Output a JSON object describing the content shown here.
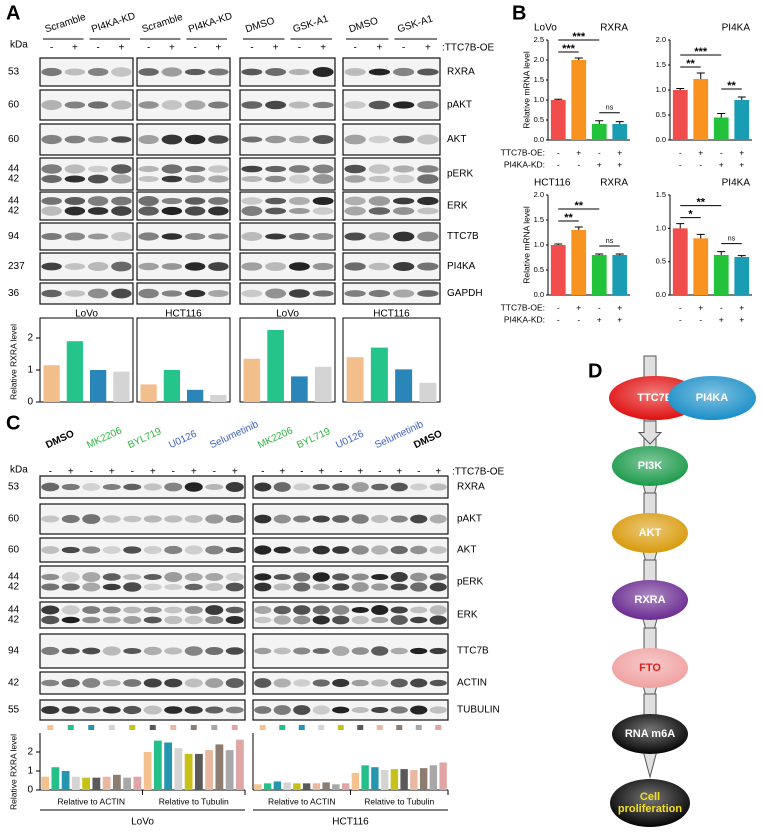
{
  "panel_a": {
    "label": "A",
    "kda": "kDa",
    "oe_label": ":TTC7B-OE",
    "groups": [
      "Scramble",
      "PI4KA-KD",
      "Scramble",
      "PI4KA-KD",
      "DMSO",
      "GSK-A1",
      "DMSO",
      "GSK-A1"
    ],
    "signs": [
      "-",
      "+"
    ],
    "proteins": [
      "RXRA",
      "pAKT",
      "AKT",
      "pERK",
      "ERK",
      "TTC7B",
      "PI4KA",
      "GAPDH"
    ],
    "markers": [
      [
        "53"
      ],
      [
        "60"
      ],
      [
        "60"
      ],
      [
        "44",
        "42"
      ],
      [
        "44",
        "42"
      ],
      [
        "94"
      ],
      [
        "237"
      ],
      [
        "36"
      ]
    ],
    "cell_lines": [
      "LoVo",
      "HCT116",
      "LoVo",
      "HCT116"
    ],
    "chart": {
      "type": "bar",
      "y_label": "Relative RXRA level",
      "ylim": [
        0,
        2.5
      ],
      "yticks": [
        0,
        1,
        2
      ],
      "colors": [
        "#f2bf8c",
        "#25c48a",
        "#2a86b8",
        "#d4d4d4"
      ],
      "groups": [
        [
          1.15,
          1.9,
          1.0,
          0.95
        ],
        [
          0.55,
          1.0,
          0.38,
          0.22
        ],
        [
          1.35,
          2.25,
          0.8,
          1.1
        ],
        [
          1.4,
          1.7,
          1.02,
          0.6
        ]
      ]
    }
  },
  "panel_b": {
    "label": "B",
    "y_label": "Relative mRNA level",
    "row_labels": [
      "TTC7B-OE:",
      "PI4KA-KD:"
    ],
    "row_signs": [
      [
        "-",
        "+",
        "-",
        "+"
      ],
      [
        "-",
        "-",
        "+",
        "+"
      ]
    ],
    "colors": [
      "#f24d4d",
      "#f7931e",
      "#22c23a",
      "#1a9db2"
    ],
    "charts": [
      {
        "type": "bar",
        "cell_line": "LoVo",
        "gene": "RXRA",
        "values": [
          1.0,
          2.0,
          0.4,
          0.4
        ],
        "errors": [
          0.02,
          0.05,
          0.08,
          0.06
        ],
        "ylim": [
          0,
          2.5
        ],
        "yticks": [
          {
            "value": 0,
            "label": "0.0"
          },
          0.5,
          {
            "value": 1,
            "label": "1.0"
          },
          1.5,
          {
            "value": 2,
            "label": "2.0"
          },
          2.5
        ],
        "sig": [
          "***",
          "***",
          "ns"
        ]
      },
      {
        "type": "bar",
        "gene": "PI4KA",
        "values": [
          1.0,
          1.22,
          0.45,
          0.8
        ],
        "errors": [
          0.03,
          0.12,
          0.08,
          0.06
        ],
        "ylim": [
          0,
          2.0
        ],
        "yticks": [
          {
            "value": 0,
            "label": "0.0"
          },
          0.5,
          {
            "value": 1,
            "label": "1.0"
          },
          1.5,
          {
            "value": 2,
            "label": "2.0"
          }
        ],
        "sig": [
          "**",
          "***",
          "**"
        ]
      },
      {
        "type": "bar",
        "cell_line": "HCT116",
        "gene": "RXRA",
        "values": [
          1.0,
          1.3,
          0.8,
          0.8
        ],
        "errors": [
          0.02,
          0.06,
          0.02,
          0.02
        ],
        "ylim": [
          0,
          2.0
        ],
        "yticks": [
          {
            "value": 0,
            "label": "0.0"
          },
          0.5,
          {
            "value": 1,
            "label": "1.0"
          },
          1.5,
          {
            "value": 2,
            "label": "2.0"
          }
        ],
        "sig": [
          "**",
          "**",
          "ns"
        ]
      },
      {
        "type": "bar",
        "gene": "PI4KA",
        "values": [
          1.0,
          0.85,
          0.6,
          0.57
        ],
        "errors": [
          0.07,
          0.06,
          0.05,
          0.02
        ],
        "ylim": [
          0,
          1.5
        ],
        "yticks": [
          {
            "value": 0,
            "label": "0.0"
          },
          0.5,
          {
            "value": 1,
            "label": "1.0"
          },
          1.5
        ],
        "sig": [
          "*",
          "**",
          "ns"
        ]
      }
    ]
  },
  "panel_c": {
    "label": "C",
    "kda": "kDa",
    "oe_label": ":TTC7B-OE",
    "signs": [
      "-",
      "+"
    ],
    "treatments": [
      {
        "name": "DMSO",
        "color": "#000000"
      },
      {
        "name": "MK2206",
        "color": "#2bb33a"
      },
      {
        "name": "BYL719",
        "color": "#2bb33a"
      },
      {
        "name": "U0126",
        "color": "#3a5fc4"
      },
      {
        "name": "Selumetinib",
        "color": "#3a5fc4"
      },
      {
        "name": "MK2206",
        "color": "#2bb33a"
      },
      {
        "name": "BYL719",
        "color": "#2bb33a"
      },
      {
        "name": "U0126",
        "color": "#3a5fc4"
      },
      {
        "name": "Selumetinib",
        "color": "#3a5fc4"
      },
      {
        "name": "DMSO",
        "color": "#000000"
      }
    ],
    "proteins": [
      "RXRA",
      "pAKT",
      "AKT",
      "pERK",
      "ERK",
      "TTC7B",
      "ACTIN",
      "TUBULIN"
    ],
    "markers": [
      [
        "53"
      ],
      [
        "60"
      ],
      [
        "60"
      ],
      [
        "44",
        "42"
      ],
      [
        "44",
        "42"
      ],
      [
        "94"
      ],
      [
        "42"
      ],
      [
        "55"
      ]
    ],
    "chart": {
      "type": "bar",
      "y_label": "Relative RXRA level",
      "ylim": [
        0,
        3
      ],
      "yticks": [
        0,
        1,
        2
      ],
      "colors": [
        "#f5c18e",
        "#25c08a",
        "#2596b0",
        "#d4d4d4",
        "#c7c21a",
        "#5a5a5a",
        "#e8b8a0",
        "#8c7d70",
        "#a8a8a8",
        "#e0a6a6"
      ],
      "panels": [
        {
          "cell_line": "LoVo",
          "groups": [
            {
              "name": "Relative to ACTIN",
              "values": [
                0.7,
                1.2,
                1.0,
                0.7,
                0.65,
                0.65,
                0.7,
                0.8,
                0.65,
                0.7
              ]
            },
            {
              "name": "Relative to Tubulin",
              "values": [
                2.0,
                2.6,
                2.5,
                2.2,
                1.9,
                1.9,
                2.1,
                2.4,
                2.1,
                2.65
              ]
            }
          ]
        },
        {
          "cell_line": "HCT116",
          "groups": [
            {
              "name": "Relative to ACTIN",
              "values": [
                0.3,
                0.35,
                0.45,
                0.4,
                0.35,
                0.35,
                0.35,
                0.4,
                0.3,
                0.35
              ]
            },
            {
              "name": "Relative to Tubulin",
              "values": [
                0.9,
                1.3,
                1.2,
                1.05,
                1.1,
                1.1,
                1.05,
                1.15,
                1.3,
                1.45
              ]
            }
          ]
        }
      ]
    }
  },
  "panel_d": {
    "label": "D",
    "nodes": [
      {
        "lines": [
          "TTC7B"
        ],
        "color": "#e01010",
        "text_color": "#ffffff"
      },
      {
        "lines": [
          "PI4KA"
        ],
        "color": "#1a8fc8",
        "text_color": "#ffffff"
      },
      {
        "lines": [
          "PI3K"
        ],
        "color": "#1a9a4a",
        "text_color": "#ffffff"
      },
      {
        "lines": [
          "AKT"
        ],
        "color": "#d99a0a",
        "text_color": "#ffffff"
      },
      {
        "lines": [
          "RXRA"
        ],
        "color": "#6a2a90",
        "text_color": "#ffffff"
      },
      {
        "lines": [
          "FTO"
        ],
        "color": "#f0a0a0",
        "text_color": "#e02020"
      },
      {
        "lines": [
          "RNA m6A"
        ],
        "color": "#050505",
        "text_color": "#ffffff"
      },
      {
        "lines": [
          "Cell",
          "proliferation"
        ],
        "color": "#050505",
        "text_color": "#f5e020"
      }
    ]
  }
}
